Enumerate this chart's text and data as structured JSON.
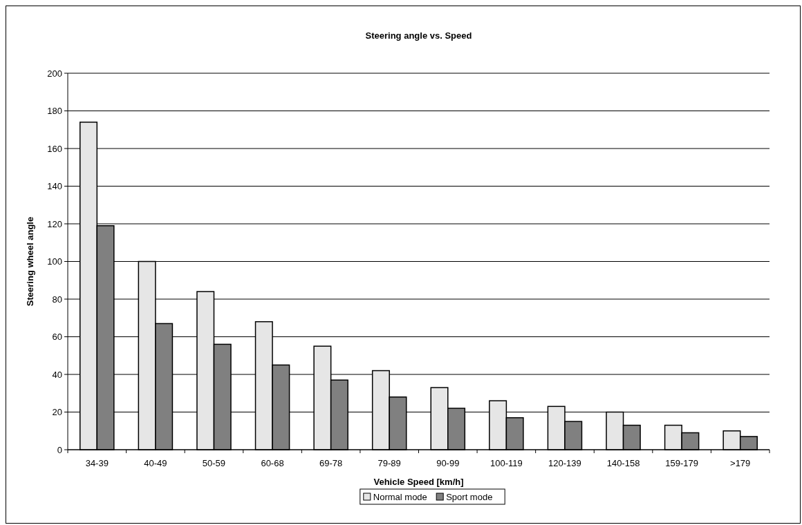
{
  "chart_data": {
    "type": "bar",
    "title": "Steering angle vs. Speed",
    "xlabel": "Vehicle Speed [km/h]",
    "ylabel": "Steering wheel angle",
    "categories": [
      "34-39",
      "40-49",
      "50-59",
      "60-68",
      "69-78",
      "79-89",
      "90-99",
      "100-119",
      "120-139",
      "140-158",
      "159-179",
      ">179"
    ],
    "series": [
      {
        "name": "Normal mode",
        "color": "#e6e6e6",
        "values": [
          174,
          100,
          84,
          68,
          55,
          42,
          33,
          26,
          23,
          20,
          13,
          10
        ]
      },
      {
        "name": "Sport mode",
        "color": "#808080",
        "values": [
          119,
          67,
          56,
          45,
          37,
          28,
          22,
          17,
          15,
          13,
          9,
          7
        ]
      }
    ],
    "ylim": [
      0,
      200
    ],
    "yticks": [
      0,
      20,
      40,
      60,
      80,
      100,
      120,
      140,
      160,
      180,
      200
    ],
    "grid": "y",
    "legend": "bottom"
  }
}
